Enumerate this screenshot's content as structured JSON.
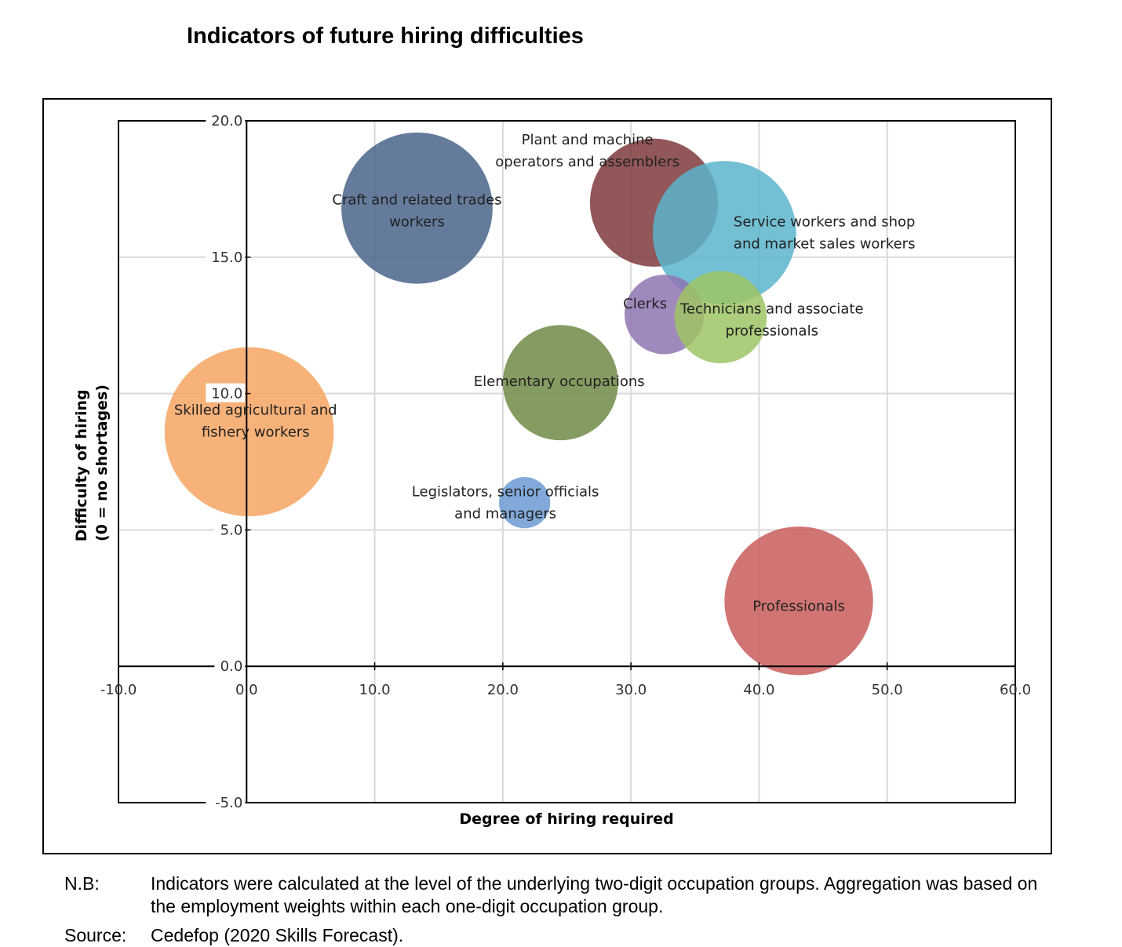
{
  "title": "Indicators of future hiring difficulties",
  "notes": {
    "nb_label": "N.B:",
    "nb_text": "Indicators were calculated at the level of the underlying two-digit occupation groups. Aggregation was based on the employment weights within each one-digit occupation group.",
    "source_label": "Source:",
    "source_text": "Cedefop (2020 Skills Forecast)."
  },
  "chart_data": {
    "type": "bubble",
    "title": "Indicators of future hiring difficulties",
    "xlabel": "Degree of hiring required",
    "ylabel_line1": "Difficulty of hiring",
    "ylabel_line2": "(0 = no shortages)",
    "xlim": [
      -10,
      60
    ],
    "ylim": [
      -5,
      20
    ],
    "x_ticks": [
      -10,
      0,
      10,
      20,
      30,
      40,
      50,
      60
    ],
    "y_ticks": [
      -5,
      0,
      5,
      10,
      15,
      20
    ],
    "x_tick_labels": [
      "-10.0",
      "0.0",
      "10.0",
      "20.0",
      "30.0",
      "40.0",
      "50.0",
      "60.0"
    ],
    "y_tick_labels": [
      "-5.0",
      "0.0",
      "5.0",
      "10.0",
      "15.0",
      "20.0"
    ],
    "grid": true,
    "series": [
      {
        "name": "Craft and related trades workers",
        "label_lines": [
          "Craft and related trades",
          "workers"
        ],
        "x": 13.3,
        "y": 16.8,
        "size": 5.9,
        "color": "#4a6489",
        "label_dx": 0,
        "label_dy": -0.1
      },
      {
        "name": "Plant and machine operators and assemblers",
        "label_lines": [
          "Plant and machine",
          "operators and assemblers"
        ],
        "x": 31.8,
        "y": 17.0,
        "size": 5.0,
        "color": "#7e3a3c",
        "label_dx": -5.2,
        "label_dy": 1.9
      },
      {
        "name": "Service workers and shop and market sales workers",
        "label_lines": [
          "Service workers and shop",
          "and market sales workers"
        ],
        "x": 37.3,
        "y": 15.9,
        "size": 5.6,
        "color": "#5ab4cc",
        "label_dx": 7.8,
        "label_dy": 0.0
      },
      {
        "name": "Clerks",
        "label_lines": [
          "Clerks"
        ],
        "x": 32.6,
        "y": 12.9,
        "size": 3.1,
        "color": "#8f74b2",
        "label_dx": -1.5,
        "label_dy": 0.4
      },
      {
        "name": "Technicians and associate professionals",
        "label_lines": [
          "Technicians and associate",
          "professionals"
        ],
        "x": 37.0,
        "y": 12.8,
        "size": 3.6,
        "color": "#9dc464",
        "label_dx": 4.0,
        "label_dy": -0.1
      },
      {
        "name": "Elementary occupations",
        "label_lines": [
          "Elementary occupations"
        ],
        "x": 24.5,
        "y": 10.4,
        "size": 4.5,
        "color": "#6e8a45",
        "label_dx": -0.1,
        "label_dy": 0.05
      },
      {
        "name": "Skilled agricultural and fishery workers",
        "label_lines": [
          "Skilled agricultural and",
          "fishery workers"
        ],
        "x": 0.2,
        "y": 8.6,
        "size": 6.6,
        "color": "#f6a562",
        "label_dx": 0.5,
        "label_dy": 0.4
      },
      {
        "name": "Legislators, senior officials and managers",
        "label_lines": [
          "Legislators, senior officials",
          "and managers"
        ],
        "x": 21.7,
        "y": 6.0,
        "size": 2.0,
        "color": "#6b9bd3",
        "label_dx": -1.5,
        "label_dy": 0.0
      },
      {
        "name": "Professionals",
        "label_lines": [
          "Professionals"
        ],
        "x": 43.1,
        "y": 2.4,
        "size": 5.8,
        "color": "#c95c5c",
        "label_dx": 0,
        "label_dy": -0.2
      }
    ]
  }
}
